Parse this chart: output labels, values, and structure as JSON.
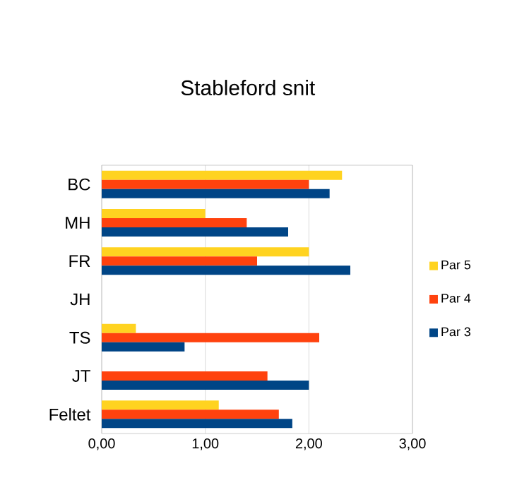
{
  "chart_data": {
    "type": "bar",
    "orientation": "horizontal",
    "title": "Stableford snit",
    "categories": [
      "BC",
      "MH",
      "FR",
      "JH",
      "TS",
      "JT",
      "Feltet"
    ],
    "series": [
      {
        "name": "Par 5",
        "color": "#ffd320",
        "values": [
          2.32,
          1.0,
          2.0,
          null,
          0.33,
          null,
          1.13
        ]
      },
      {
        "name": "Par 4",
        "color": "#ff420e",
        "values": [
          2.0,
          1.4,
          1.5,
          null,
          2.1,
          1.6,
          1.71
        ]
      },
      {
        "name": "Par 3",
        "color": "#004586",
        "values": [
          2.2,
          1.8,
          2.4,
          null,
          0.8,
          2.0,
          1.84
        ]
      }
    ],
    "xlim": [
      0,
      3
    ],
    "xticks": [
      {
        "value": 0,
        "label": "0,00"
      },
      {
        "value": 1,
        "label": "1,00"
      },
      {
        "value": 2,
        "label": "2,00"
      },
      {
        "value": 3,
        "label": "3,00"
      }
    ],
    "grid": "x",
    "legend": "right"
  }
}
